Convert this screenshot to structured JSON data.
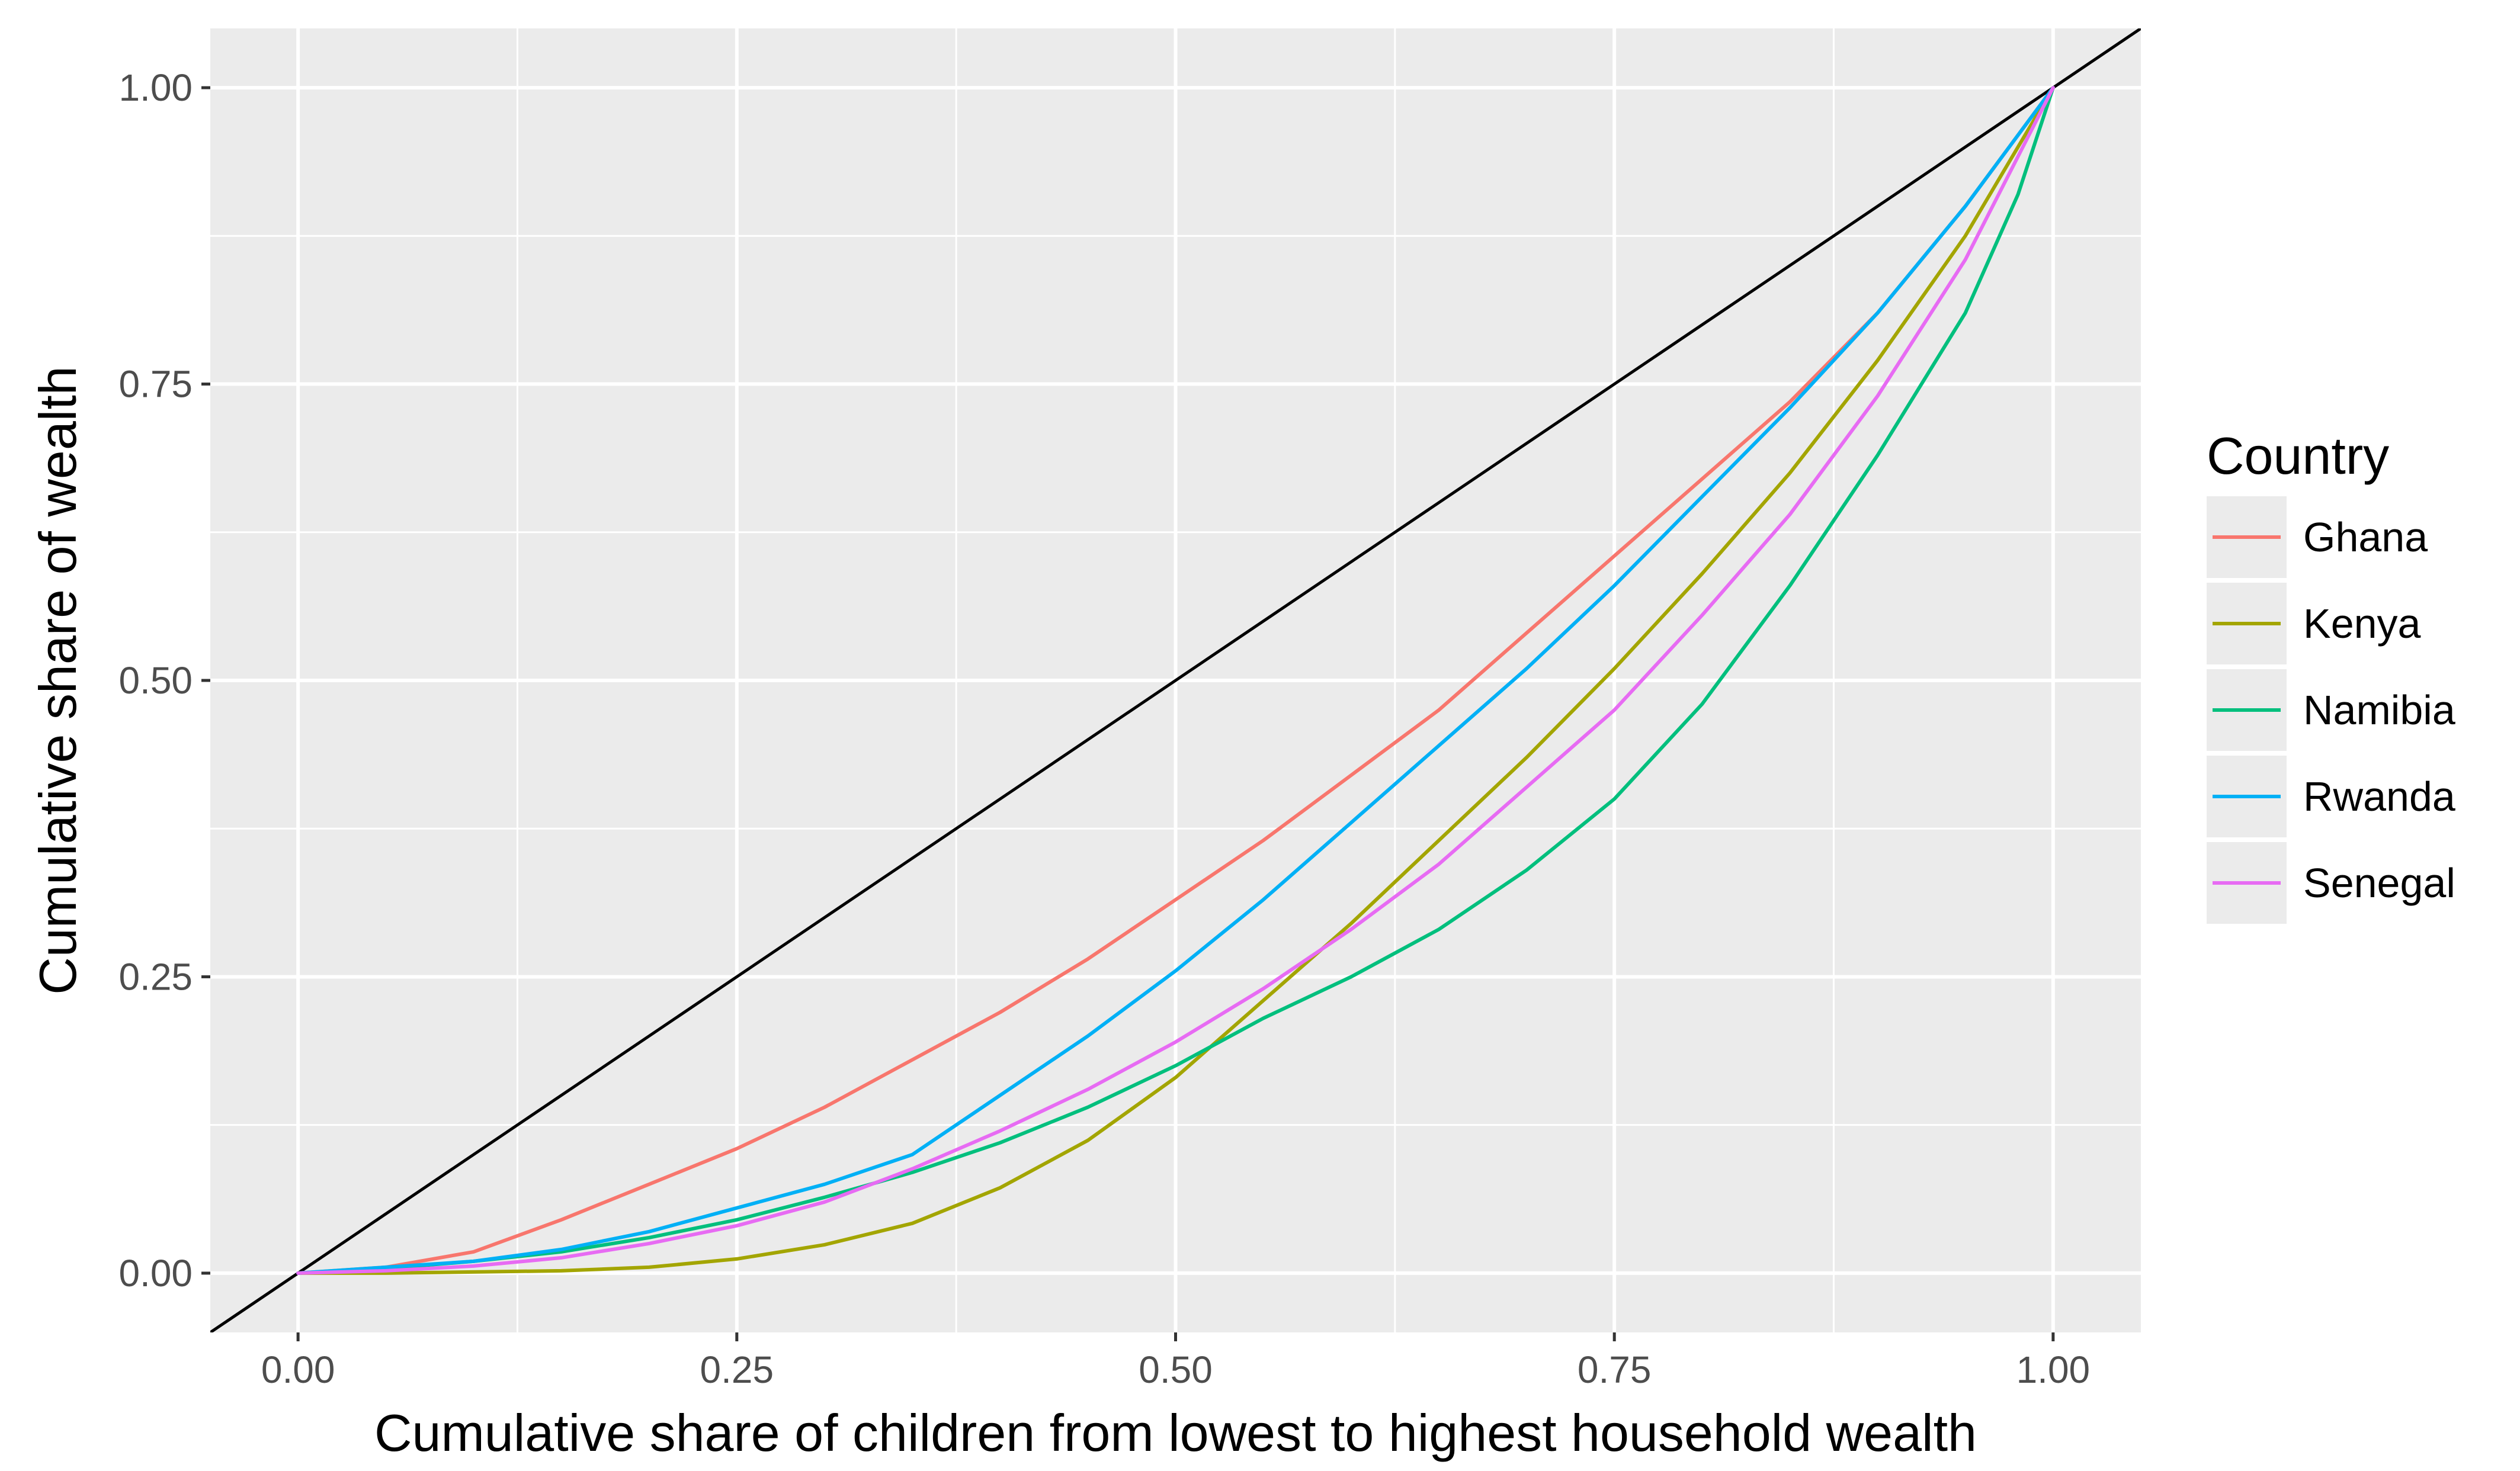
{
  "chart_data": {
    "type": "line",
    "title": "",
    "xlabel": "Cumulative share of children from lowest to highest household wealth",
    "ylabel": "Cumulative share of wealth",
    "xlim": [
      -0.05,
      1.05
    ],
    "ylim": [
      -0.05,
      1.05
    ],
    "x_ticks": [
      "0.00",
      "0.25",
      "0.50",
      "0.75",
      "1.00"
    ],
    "y_ticks": [
      "0.00",
      "0.25",
      "0.50",
      "0.75",
      "1.00"
    ],
    "grid": true,
    "legend": {
      "title": "Country",
      "position": "right"
    },
    "equality_line": {
      "color": "#000000",
      "points": [
        [
          -0.05,
          -0.05
        ],
        [
          1.05,
          1.05
        ]
      ]
    },
    "series": [
      {
        "name": "Ghana",
        "color": "#F8766D",
        "points": [
          [
            0,
            0
          ],
          [
            0.05,
            0.005
          ],
          [
            0.1,
            0.018
          ],
          [
            0.15,
            0.045
          ],
          [
            0.2,
            0.075
          ],
          [
            0.25,
            0.105
          ],
          [
            0.3,
            0.14
          ],
          [
            0.35,
            0.18
          ],
          [
            0.4,
            0.22
          ],
          [
            0.45,
            0.265
          ],
          [
            0.5,
            0.315
          ],
          [
            0.55,
            0.365
          ],
          [
            0.6,
            0.42
          ],
          [
            0.65,
            0.475
          ],
          [
            0.7,
            0.54
          ],
          [
            0.75,
            0.605
          ],
          [
            0.8,
            0.67
          ],
          [
            0.85,
            0.735
          ],
          [
            0.9,
            0.81
          ],
          [
            0.95,
            0.9
          ],
          [
            1,
            1
          ]
        ]
      },
      {
        "name": "Kenya",
        "color": "#A3A500",
        "points": [
          [
            0,
            0
          ],
          [
            0.05,
            0.0
          ],
          [
            0.1,
            0.001
          ],
          [
            0.15,
            0.002
          ],
          [
            0.2,
            0.005
          ],
          [
            0.25,
            0.012
          ],
          [
            0.3,
            0.024
          ],
          [
            0.35,
            0.042
          ],
          [
            0.4,
            0.072
          ],
          [
            0.45,
            0.112
          ],
          [
            0.5,
            0.165
          ],
          [
            0.55,
            0.23
          ],
          [
            0.6,
            0.295
          ],
          [
            0.65,
            0.365
          ],
          [
            0.7,
            0.435
          ],
          [
            0.75,
            0.51
          ],
          [
            0.8,
            0.59
          ],
          [
            0.85,
            0.675
          ],
          [
            0.9,
            0.77
          ],
          [
            0.95,
            0.875
          ],
          [
            1,
            1
          ]
        ]
      },
      {
        "name": "Namibia",
        "color": "#00BF7D",
        "points": [
          [
            0,
            0
          ],
          [
            0.05,
            0.004
          ],
          [
            0.1,
            0.01
          ],
          [
            0.15,
            0.018
          ],
          [
            0.2,
            0.03
          ],
          [
            0.25,
            0.045
          ],
          [
            0.3,
            0.064
          ],
          [
            0.35,
            0.085
          ],
          [
            0.4,
            0.11
          ],
          [
            0.45,
            0.14
          ],
          [
            0.5,
            0.175
          ],
          [
            0.55,
            0.215
          ],
          [
            0.6,
            0.25
          ],
          [
            0.65,
            0.29
          ],
          [
            0.7,
            0.34
          ],
          [
            0.75,
            0.4
          ],
          [
            0.8,
            0.48
          ],
          [
            0.85,
            0.58
          ],
          [
            0.9,
            0.69
          ],
          [
            0.95,
            0.81
          ],
          [
            0.98,
            0.91
          ],
          [
            1,
            1
          ]
        ]
      },
      {
        "name": "Rwanda",
        "color": "#00B0F6",
        "points": [
          [
            0,
            0
          ],
          [
            0.05,
            0.005
          ],
          [
            0.1,
            0.01
          ],
          [
            0.15,
            0.02
          ],
          [
            0.2,
            0.035
          ],
          [
            0.25,
            0.055
          ],
          [
            0.3,
            0.075
          ],
          [
            0.35,
            0.1
          ],
          [
            0.4,
            0.15
          ],
          [
            0.45,
            0.2
          ],
          [
            0.5,
            0.255
          ],
          [
            0.55,
            0.315
          ],
          [
            0.6,
            0.38
          ],
          [
            0.65,
            0.445
          ],
          [
            0.7,
            0.51
          ],
          [
            0.75,
            0.58
          ],
          [
            0.8,
            0.655
          ],
          [
            0.85,
            0.73
          ],
          [
            0.9,
            0.81
          ],
          [
            0.95,
            0.9
          ],
          [
            1,
            1
          ]
        ]
      },
      {
        "name": "Senegal",
        "color": "#E76BF3",
        "points": [
          [
            0,
            0
          ],
          [
            0.05,
            0.002
          ],
          [
            0.1,
            0.006
          ],
          [
            0.15,
            0.013
          ],
          [
            0.2,
            0.025
          ],
          [
            0.25,
            0.04
          ],
          [
            0.3,
            0.06
          ],
          [
            0.35,
            0.088
          ],
          [
            0.4,
            0.12
          ],
          [
            0.45,
            0.155
          ],
          [
            0.5,
            0.195
          ],
          [
            0.55,
            0.24
          ],
          [
            0.6,
            0.29
          ],
          [
            0.65,
            0.345
          ],
          [
            0.7,
            0.41
          ],
          [
            0.75,
            0.475
          ],
          [
            0.8,
            0.555
          ],
          [
            0.85,
            0.64
          ],
          [
            0.9,
            0.74
          ],
          [
            0.95,
            0.855
          ],
          [
            1,
            1
          ]
        ]
      }
    ]
  }
}
